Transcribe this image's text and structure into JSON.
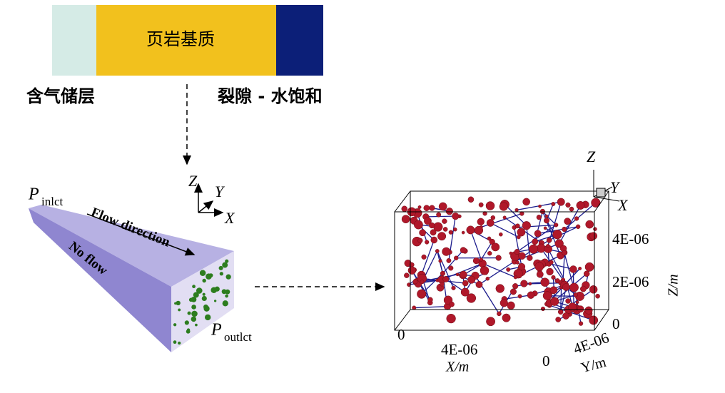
{
  "legend_bar": {
    "center_label": "页岩基质",
    "left_label": "含气储层",
    "right_label": "裂隙 - 水饱和"
  },
  "triad_left": {
    "z": "Z",
    "y": "Y",
    "x": "X"
  },
  "prism": {
    "inlet_symbol": "P",
    "inlet_subscript": "inlct",
    "outlet_symbol": "P",
    "outlet_subscript": "outlct",
    "flow_label": "Flow direction",
    "no_flow_label": "No flow"
  },
  "network": {
    "triad": {
      "z": "Z",
      "y": "Y",
      "x": "X"
    },
    "z_ticks": [
      "0",
      "2E-06",
      "4E-06"
    ],
    "z_title": "Z/m",
    "x_ticks": [
      "0",
      "4E-06"
    ],
    "x_title": "X/m",
    "y_ticks": [
      "0",
      "4E-06"
    ],
    "y_title": "Y/m"
  }
}
